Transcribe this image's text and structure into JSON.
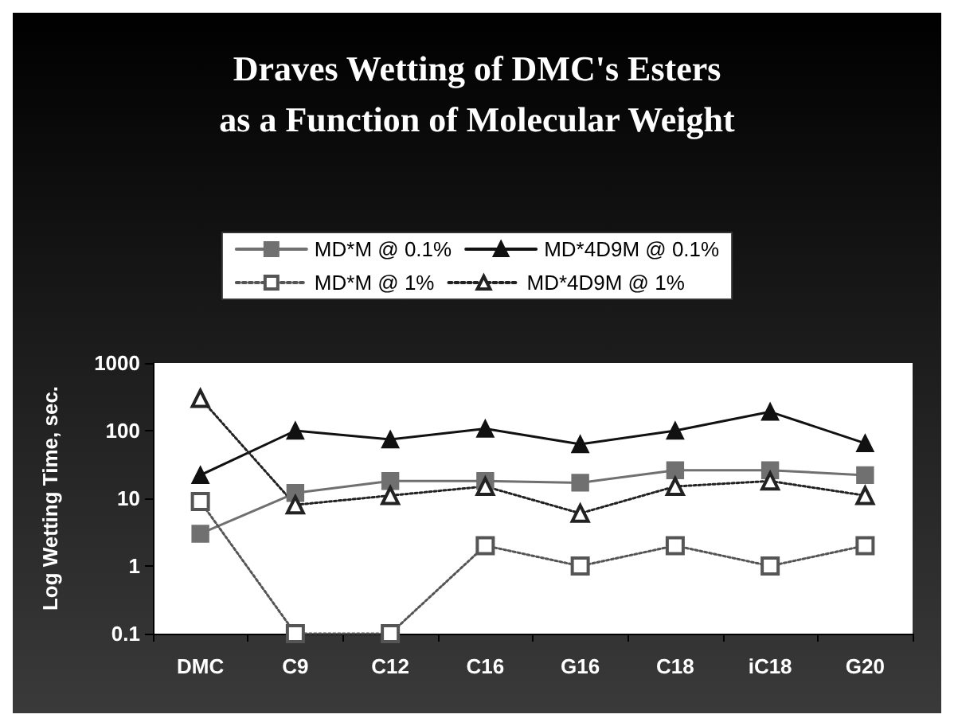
{
  "chart_data": {
    "type": "line",
    "title": "Draves Wetting of DMC's Esters\nas a Function of Molecular Weight",
    "ylabel": "Log Wetting Time, sec.",
    "categories": [
      "DMC",
      "C9",
      "C12",
      "C16",
      "G16",
      "C18",
      "iC18",
      "G20"
    ],
    "series": [
      {
        "name": "MD*M @ 0.1%",
        "color": "#707070",
        "marker": "square",
        "line_style": "solid",
        "values": [
          3,
          12,
          18,
          18,
          17,
          26,
          26,
          22
        ]
      },
      {
        "name": "MD*4D9M @ 0.1%",
        "color": "#111111",
        "marker": "triangle",
        "line_style": "solid",
        "values": [
          22,
          100,
          74,
          107,
          63,
          100,
          190,
          65
        ]
      },
      {
        "name": "MD*M @ 1%",
        "color": "#555555",
        "marker": "square",
        "line_style": "dotted",
        "values": [
          9,
          0.1,
          0.1,
          2,
          1,
          2,
          1,
          2
        ]
      },
      {
        "name": "MD*4D9M @ 1%",
        "color": "#222222",
        "marker": "triangle",
        "line_style": "dotted",
        "values": [
          300,
          8,
          11,
          15,
          6,
          15,
          18,
          11
        ]
      }
    ],
    "log": "y",
    "ylim": [
      0.1,
      1000
    ],
    "yticks": [
      0.1,
      1,
      10,
      100,
      1000
    ],
    "grid": false,
    "legend": "top"
  }
}
